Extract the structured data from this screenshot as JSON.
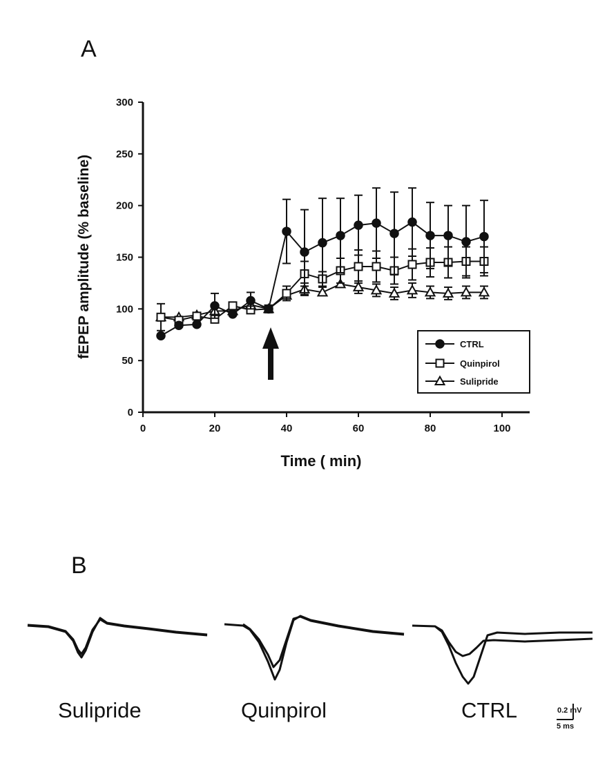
{
  "panel_a_label": "A",
  "panel_b_label": "B",
  "chart_data": {
    "type": "line",
    "title": "",
    "xlabel": "Time ( min)",
    "ylabel": "fEPEP amplitude (% baseline)",
    "xlim": [
      0,
      100
    ],
    "ylim": [
      0,
      300
    ],
    "x_ticks": [
      "0",
      "20",
      "40",
      "60",
      "80",
      "100"
    ],
    "y_ticks": [
      "0",
      "50",
      "100",
      "150",
      "200",
      "250",
      "300"
    ],
    "legend_position": "bottom-right",
    "annotation": "arrow at x=35",
    "series": [
      {
        "name": "CTRL",
        "marker": "filled-circle",
        "x": [
          5,
          10,
          15,
          20,
          25,
          30,
          35,
          40,
          45,
          50,
          55,
          60,
          65,
          70,
          75,
          80,
          85,
          90,
          95
        ],
        "y": [
          74,
          84,
          85,
          103,
          95,
          108,
          100,
          175,
          155,
          164,
          171,
          181,
          183,
          173,
          184,
          171,
          171,
          165,
          170
        ],
        "err": [
          0,
          0,
          0,
          12,
          0,
          8,
          0,
          31,
          41,
          43,
          36,
          29,
          34,
          40,
          33,
          32,
          29,
          35,
          35
        ]
      },
      {
        "name": "Quinpirol",
        "marker": "open-square",
        "x": [
          5,
          10,
          15,
          20,
          25,
          30,
          35,
          40,
          45,
          50,
          55,
          60,
          65,
          70,
          75,
          80,
          85,
          90,
          95
        ],
        "y": [
          92,
          89,
          93,
          90,
          103,
          99,
          100,
          115,
          134,
          129,
          137,
          141,
          141,
          137,
          143,
          145,
          145,
          146,
          146
        ],
        "err": [
          13,
          0,
          0,
          0,
          0,
          0,
          0,
          7,
          12,
          7,
          12,
          16,
          15,
          13,
          15,
          14,
          15,
          14,
          14
        ]
      },
      {
        "name": "Sulipride",
        "marker": "open-triangle",
        "x": [
          5,
          10,
          15,
          20,
          25,
          30,
          35,
          40,
          45,
          50,
          55,
          60,
          65,
          70,
          75,
          80,
          85,
          90,
          95
        ],
        "y": [
          92,
          92,
          94,
          98,
          98,
          104,
          100,
          113,
          119,
          116,
          124,
          121,
          118,
          115,
          118,
          116,
          115,
          116,
          116
        ],
        "err": [
          0,
          0,
          0,
          0,
          0,
          0,
          0,
          0,
          6,
          0,
          0,
          6,
          6,
          6,
          7,
          6,
          6,
          6,
          6
        ]
      }
    ]
  },
  "traces": {
    "labels": [
      "Sulipride",
      "Quinpirol",
      "CTRL"
    ],
    "scalebar_vertical": "0.2 mV",
    "scalebar_horizontal": "5 ms"
  }
}
